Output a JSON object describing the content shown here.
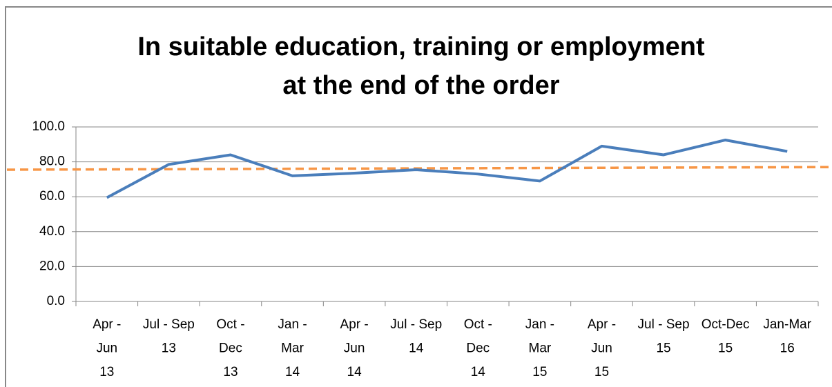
{
  "chart_data": {
    "type": "line",
    "title": [
      "In suitable education, training or employment",
      "at the end of the order"
    ],
    "categories": [
      "Apr -\nJun\n13",
      "Jul - Sep\n13",
      "Oct -\nDec\n13",
      "Jan -\nMar\n14",
      "Apr -\nJun\n14",
      "Jul - Sep\n14",
      "Oct -\nDec\n14",
      "Jan -\nMar\n15",
      "Apr -\nJun\n15",
      "Jul - Sep\n15",
      "Oct-Dec\n15",
      "Jan-Mar\n16"
    ],
    "series": [
      {
        "color": "#4a7ebb",
        "values": [
          59.5,
          78.5,
          84,
          72,
          73.5,
          75.5,
          73,
          69,
          89,
          84,
          92.5,
          86
        ]
      }
    ],
    "trendline": {
      "color": "#f79646",
      "dashed": true,
      "values": [
        75.5,
        77
      ]
    },
    "ylim": [
      0,
      100
    ],
    "yticks": [
      {
        "value": 0,
        "label": "0.0"
      },
      {
        "value": 20,
        "label": "20.0"
      },
      {
        "value": 40,
        "label": "40.0"
      },
      {
        "value": 60,
        "label": "60.0"
      },
      {
        "value": 80,
        "label": "80.0"
      },
      {
        "value": 100,
        "label": "100.0"
      }
    ],
    "grid": true
  }
}
